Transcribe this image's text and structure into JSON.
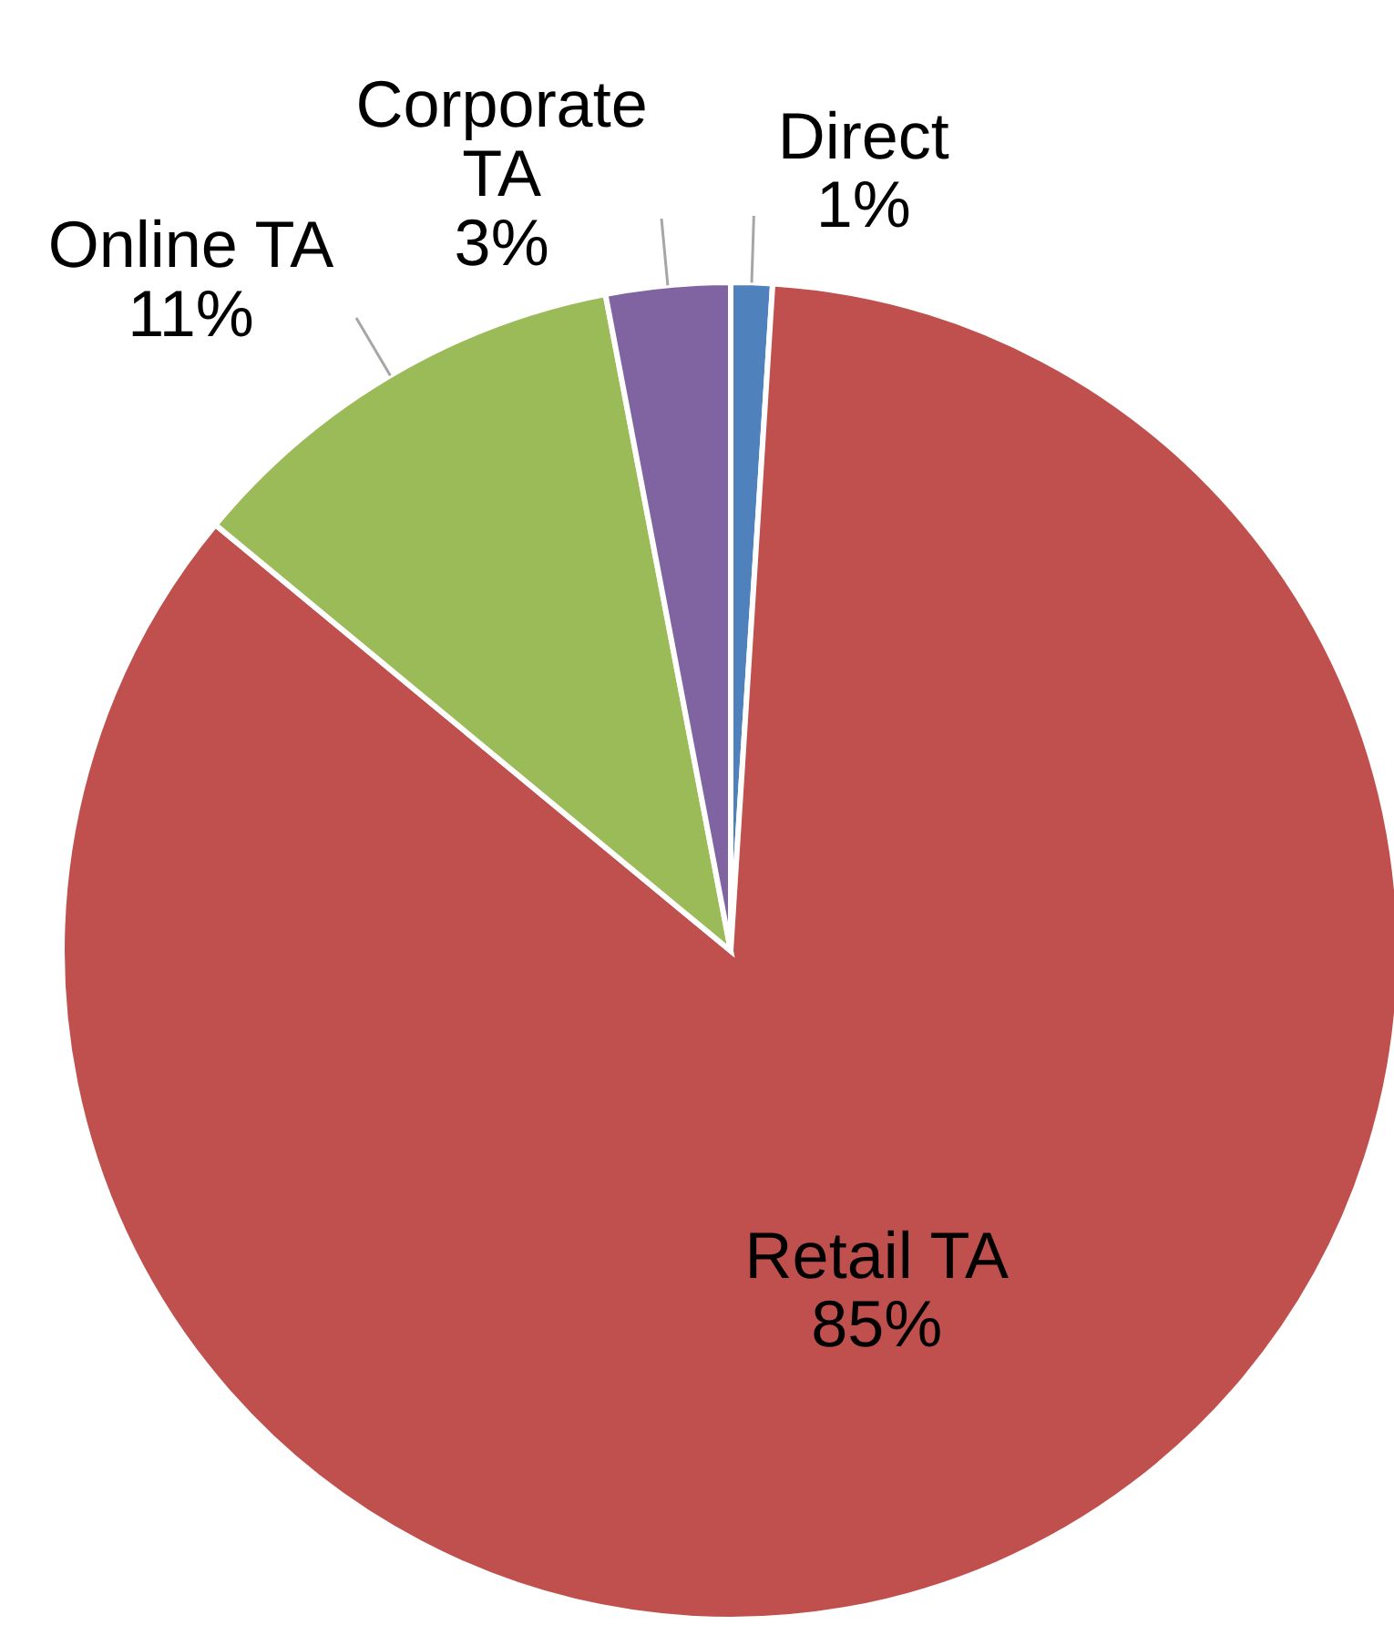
{
  "chart_data": {
    "type": "pie",
    "categories": [
      "Direct",
      "Retail TA",
      "Online TA",
      "Corporate TA"
    ],
    "values": [
      1,
      85,
      11,
      3
    ],
    "colors": [
      "#4f81bd",
      "#c0504d",
      "#9bbb59",
      "#8064a2"
    ],
    "value_labels": [
      "1%",
      "85%",
      "11%",
      "3%"
    ],
    "legend": false
  }
}
